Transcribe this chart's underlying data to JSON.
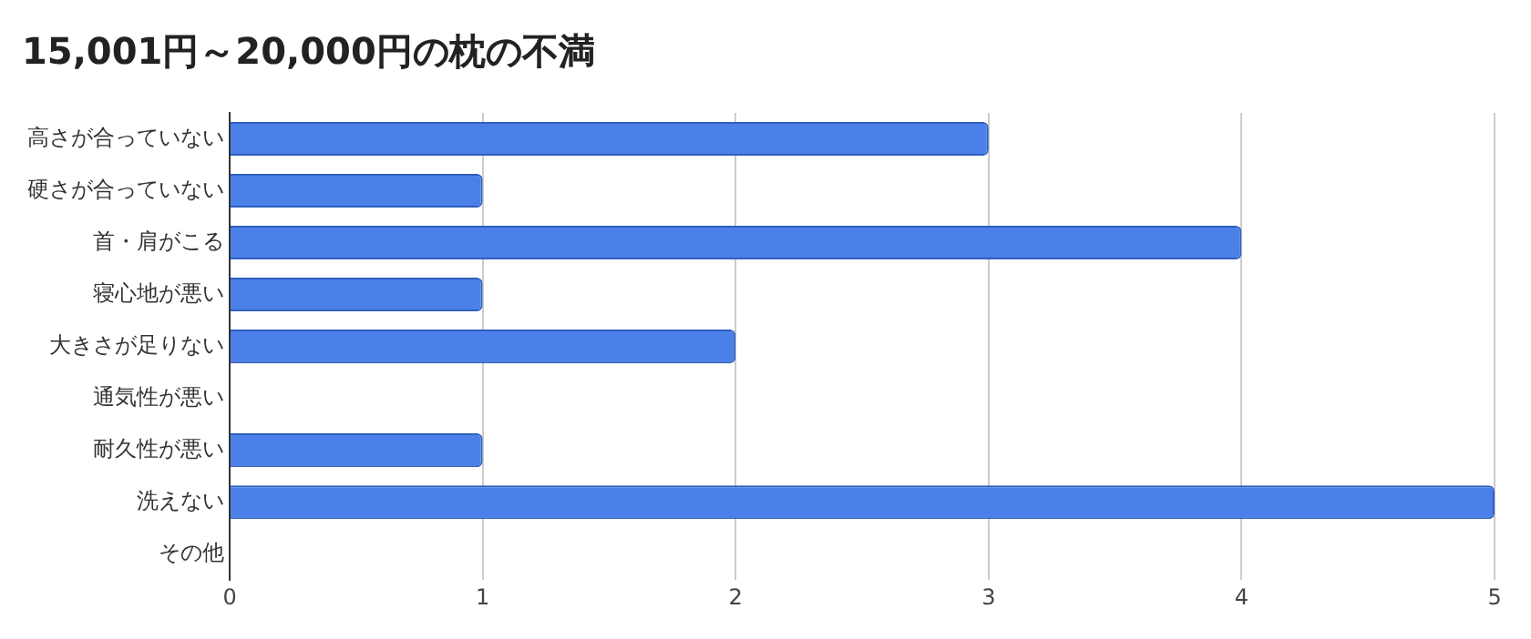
{
  "chart_data": {
    "type": "bar",
    "orientation": "horizontal",
    "title": "15,001円～20,000円の枕の不満",
    "categories": [
      "高さが合っていない",
      "硬さが合っていない",
      "首・肩がこる",
      "寝心地が悪い",
      "大きさが足りない",
      "通気性が悪い",
      "耐久性が悪い",
      "洗えない",
      "その他"
    ],
    "values": [
      3,
      1,
      4,
      1,
      2,
      0,
      1,
      5,
      0
    ],
    "color": "#4a80e8",
    "xlim": [
      0,
      5
    ],
    "xticks": [
      0,
      1,
      2,
      3,
      4,
      5
    ],
    "grid": "x"
  }
}
